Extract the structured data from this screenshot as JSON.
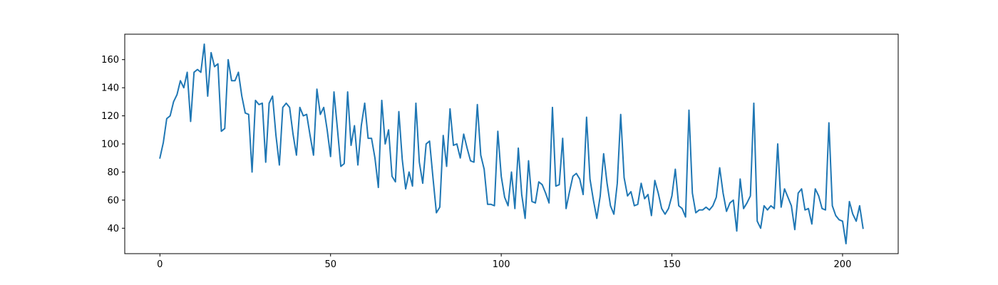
{
  "chart_data": {
    "type": "line",
    "title": "",
    "xlabel": "",
    "ylabel": "",
    "xlim": [
      -10.3,
      216.3
    ],
    "ylim": [
      21.9,
      178.1
    ],
    "xticks": [
      0,
      50,
      100,
      150,
      200
    ],
    "yticks": [
      40,
      60,
      80,
      100,
      120,
      140,
      160
    ],
    "grid": false,
    "legend": "none",
    "colors": {
      "line": "#1f77b4",
      "axes": "#000000",
      "background": "#ffffff"
    },
    "series": [
      {
        "values": [
          90,
          101,
          118,
          120,
          130,
          135,
          145,
          140,
          151,
          116,
          151,
          153,
          151,
          171,
          134,
          165,
          155,
          157,
          109,
          111,
          160,
          145,
          145,
          151,
          134,
          122,
          121,
          80,
          131,
          128,
          129,
          87,
          129,
          134,
          106,
          85,
          126,
          129,
          126,
          107,
          92,
          126,
          120,
          121,
          106,
          92,
          139,
          121,
          126,
          110,
          91,
          137,
          111,
          84,
          86,
          137,
          99,
          113,
          85,
          113,
          129,
          104,
          104,
          90,
          69,
          131,
          100,
          110,
          77,
          73,
          123,
          89,
          68,
          80,
          70,
          129,
          87,
          72,
          100,
          102,
          76,
          51,
          55,
          106,
          84,
          125,
          99,
          100,
          90,
          107,
          97,
          88,
          87,
          128,
          92,
          82,
          57,
          57,
          56,
          109,
          77,
          62,
          56,
          80,
          54,
          97,
          64,
          47,
          88,
          59,
          58,
          73,
          71,
          65,
          58,
          126,
          70,
          71,
          104,
          54,
          66,
          77,
          79,
          75,
          64,
          119,
          75,
          60,
          47,
          63,
          93,
          72,
          56,
          50,
          72,
          121,
          76,
          63,
          66,
          56,
          57,
          72,
          61,
          64,
          49,
          74,
          65,
          54,
          50,
          54,
          63,
          82,
          56,
          54,
          48,
          124,
          65,
          51,
          53,
          53,
          55,
          53,
          56,
          62,
          83,
          65,
          52,
          58,
          60,
          38,
          75,
          54,
          58,
          63,
          129,
          45,
          40,
          56,
          53,
          56,
          54,
          100,
          55,
          68,
          62,
          56,
          39,
          65,
          68,
          53,
          54,
          43,
          68,
          63,
          54,
          53,
          115,
          56,
          49,
          46,
          45,
          29,
          59,
          50,
          45,
          56,
          40
        ]
      }
    ]
  }
}
